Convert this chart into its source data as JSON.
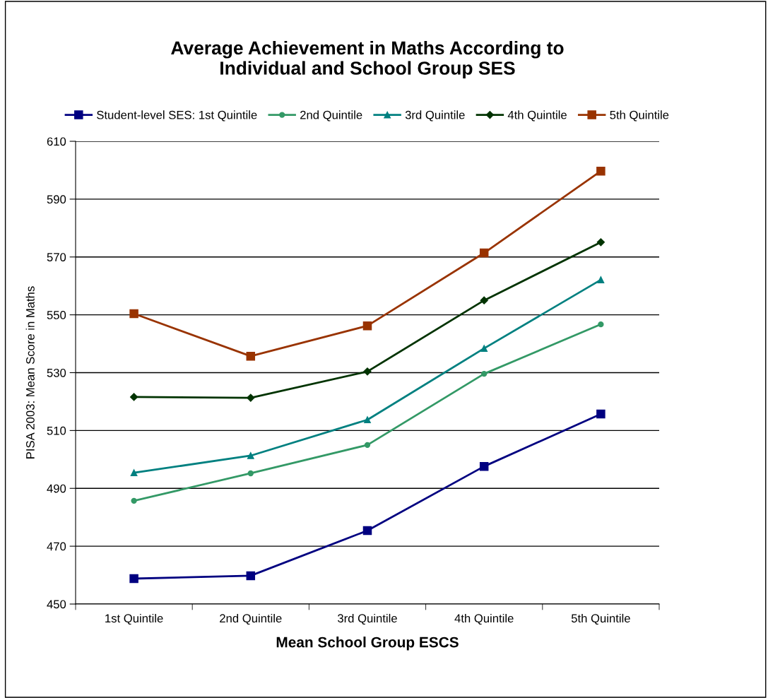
{
  "chart_data": {
    "type": "line",
    "title": "Average Achievement in Maths According to\nIndividual and School Group SES",
    "xlabel": "Mean School Group ESCS",
    "ylabel": "PISA 2003: Mean Score in Maths",
    "categories": [
      "1st Quintile",
      "2nd Quintile",
      "3rd Quintile",
      "4th Quintile",
      "5th Quintile"
    ],
    "series": [
      {
        "name": "Student-level SES: 1st Quintile",
        "color": "#000080",
        "marker": "square",
        "values": [
          458.8,
          459.8,
          475.4,
          497.6,
          515.7
        ]
      },
      {
        "name": "2nd Quintile",
        "color": "#339966",
        "marker": "circle",
        "values": [
          485.7,
          495.2,
          505.0,
          529.6,
          546.7
        ]
      },
      {
        "name": "3rd Quintile",
        "color": "#008080",
        "marker": "triangle",
        "values": [
          495.4,
          501.3,
          513.7,
          538.4,
          562.1
        ]
      },
      {
        "name": "4th Quintile",
        "color": "#003300",
        "marker": "diamond",
        "values": [
          521.6,
          521.3,
          530.4,
          555.0,
          575.1
        ]
      },
      {
        "name": "5th Quintile",
        "color": "#993300",
        "marker": "square",
        "values": [
          550.4,
          535.7,
          546.2,
          571.4,
          599.7
        ]
      }
    ],
    "ylim": [
      450,
      610
    ],
    "yticks": [
      450,
      470,
      490,
      510,
      530,
      550,
      570,
      590,
      610
    ],
    "grid": "y",
    "legend": "top",
    "line_style": "solid"
  }
}
